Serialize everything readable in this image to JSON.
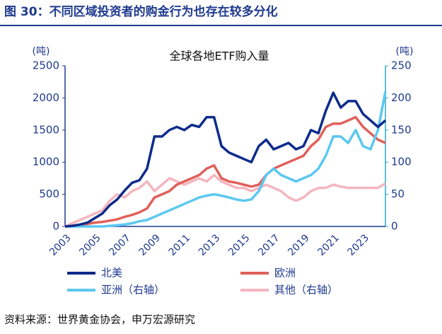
{
  "chart_data": {
    "type": "line",
    "figure_caption": "图 30：不同区域投资者的购金行为也存在较多分化",
    "title": "全球各地ETF购入量",
    "y_label": "(吨)",
    "y2_label": "(吨)",
    "source": "资料来源：世界黄金协会，申万宏源研究",
    "categories": [
      "2003",
      null,
      null,
      null,
      "2005",
      null,
      null,
      null,
      "2007",
      null,
      null,
      null,
      "2009",
      null,
      null,
      null,
      "2011",
      null,
      null,
      null,
      "2013",
      null,
      null,
      null,
      "2015",
      null,
      null,
      null,
      "2017",
      null,
      null,
      null,
      "2019",
      null,
      null,
      null,
      "2021",
      null,
      null,
      null,
      "2023",
      null,
      null,
      null
    ],
    "ylim": [
      0,
      2500
    ],
    "yticks": [
      0,
      500,
      1000,
      1500,
      2000,
      2500
    ],
    "y2lim": [
      0,
      250
    ],
    "y2ticks": [
      0,
      50,
      100,
      150,
      200,
      250
    ],
    "series": [
      {
        "name": "北美",
        "color": "#0d2b8a",
        "values": [
          0,
          10,
          30,
          60,
          130,
          200,
          330,
          420,
          560,
          680,
          720,
          900,
          1400,
          1400,
          1500,
          1550,
          1500,
          1580,
          1550,
          1700,
          1700,
          1250,
          1150,
          1100,
          1050,
          1000,
          1250,
          1350,
          1200,
          1250,
          1300,
          1200,
          1250,
          1500,
          1450,
          1800,
          2080,
          1850,
          1950,
          1950,
          1750,
          1650,
          1550,
          1650
        ]
      },
      {
        "name": "欧洲",
        "color": "#e0605a",
        "values": [
          0,
          5,
          20,
          40,
          60,
          70,
          90,
          110,
          150,
          180,
          220,
          280,
          450,
          500,
          550,
          650,
          700,
          750,
          800,
          900,
          950,
          750,
          700,
          680,
          650,
          620,
          650,
          800,
          900,
          950,
          1000,
          1050,
          1100,
          1250,
          1350,
          1550,
          1600,
          1600,
          1650,
          1700,
          1550,
          1450,
          1350,
          1300
        ]
      },
      {
        "name": "亚洲（右轴）",
        "color": "#5bc8f0",
        "axis": "y2",
        "values": [
          0,
          0,
          0,
          0,
          0,
          0,
          1,
          2,
          3,
          5,
          8,
          10,
          15,
          20,
          25,
          30,
          35,
          40,
          45,
          48,
          50,
          48,
          45,
          42,
          40,
          42,
          55,
          80,
          90,
          80,
          75,
          70,
          75,
          80,
          90,
          110,
          140,
          140,
          130,
          150,
          125,
          120,
          150,
          210
        ]
      },
      {
        "name": "其他（右轴）",
        "color": "#f4b6bf",
        "axis": "y2",
        "values": [
          0,
          5,
          10,
          15,
          20,
          25,
          40,
          50,
          45,
          55,
          60,
          70,
          55,
          65,
          75,
          70,
          65,
          70,
          75,
          70,
          80,
          70,
          65,
          60,
          60,
          55,
          60,
          65,
          60,
          55,
          45,
          40,
          45,
          55,
          60,
          60,
          65,
          62,
          60,
          60,
          60,
          60,
          60,
          67
        ]
      }
    ]
  }
}
